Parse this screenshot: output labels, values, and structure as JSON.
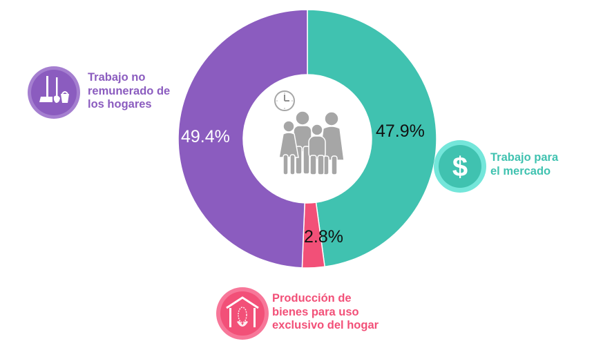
{
  "chart_data": {
    "type": "pie",
    "subtype": "donut",
    "title": "",
    "series": [
      {
        "name": "Trabajo para el mercado",
        "value": 47.9,
        "label": "47.9%",
        "color": "#40c2b0",
        "icon": "dollar-coin-icon"
      },
      {
        "name": "Producción de bienes para uso exclusivo del hogar",
        "value": 2.8,
        "label": "2.8%",
        "color": "#f25078",
        "icon": "house-corn-icon"
      },
      {
        "name": "Trabajo no remunerado de los hogares",
        "value": 49.4,
        "label": "49.4%",
        "color": "#8b5cbf",
        "icon": "broom-bucket-icon"
      }
    ],
    "start_angle_deg": 0,
    "direction": "clockwise",
    "center_icon": "family-clock-icon",
    "legend": "inline labels with icons"
  },
  "labels": {
    "unpaid": {
      "lines": [
        "Trabajo no",
        "remunerado de",
        "los hogares"
      ],
      "pct": "49.4%",
      "color": "#8b5cbf"
    },
    "market": {
      "lines": [
        "Trabajo para",
        "el mercado"
      ],
      "pct": "47.9%",
      "color": "#40c2b0"
    },
    "home_production": {
      "lines": [
        "Producción de",
        "bienes para uso",
        "exclusivo del hogar"
      ],
      "pct": "2.8%",
      "color": "#f25078"
    }
  },
  "colors": {
    "purple": "#8b5cbf",
    "purple_ring": "#a57fd0",
    "teal": "#40c2b0",
    "teal_ring": "#74e6da",
    "pink": "#f25078",
    "pink_ring": "#f77799",
    "grey_figure": "#a6a6a6"
  }
}
